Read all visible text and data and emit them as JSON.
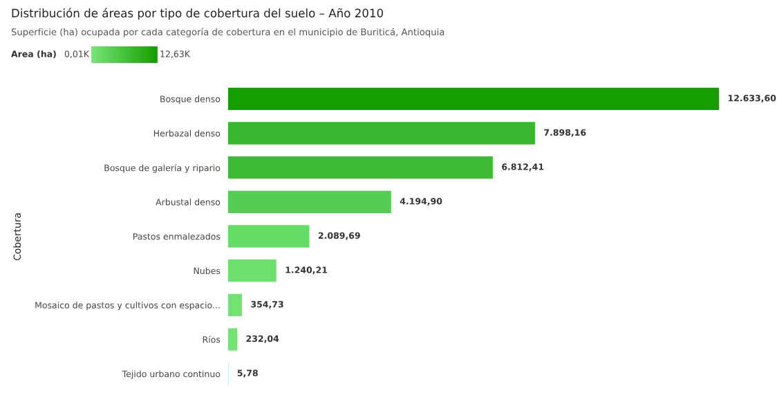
{
  "chart_data": {
    "type": "bar",
    "orientation": "horizontal",
    "title": "Distribución de áreas por tipo de cobertura del suelo – Año 2010",
    "subtitle": "Superficie (ha) ocupada por cada categoría de cobertura en el municipio de Buriticá, Antioquia",
    "ylabel": "Cobertura",
    "clabel": "Area (ha)",
    "annotations": [
      "0,01K",
      "12,63K"
    ],
    "categories": [
      "Bosque denso",
      "Herbazal denso",
      "Bosque de galería y ripario",
      "Arbustal denso",
      "Pastos enmalezados",
      "Nubes",
      "Mosaico de pastos y cultivos con espacio...",
      "Ríos",
      "Tejido urbano continuo"
    ],
    "values": [
      12633.6,
      7898.16,
      6812.41,
      4194.9,
      2089.69,
      1240.21,
      354.73,
      232.04,
      5.78
    ],
    "value_labels": [
      "12.633,60",
      "7.898,16",
      "6.812,41",
      "4.194,90",
      "2.089,69",
      "1.240,21",
      "354,73",
      "232,04",
      "5,78"
    ],
    "colors": [
      "#149e00",
      "#39b630",
      "#3fba36",
      "#55cc55",
      "#66dc66",
      "#6ddf6d",
      "#73e273",
      "#74e374",
      "#75e475"
    ],
    "grid": false,
    "legend": false
  }
}
